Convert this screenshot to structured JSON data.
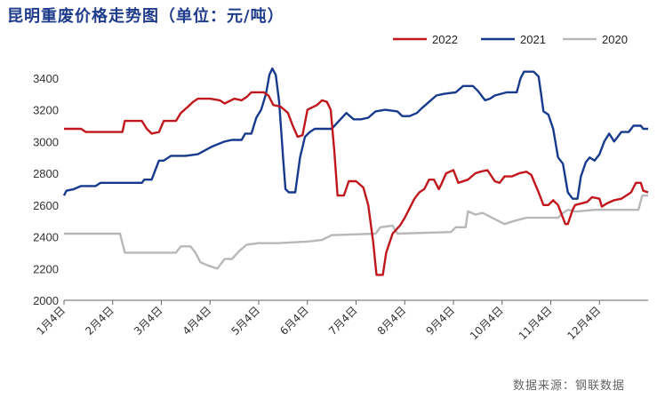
{
  "chart_data": {
    "type": "line",
    "title": "昆明重废价格走势图（单位：元/吨）",
    "source": "数据来源：钢联数据",
    "ylim": [
      2000,
      3500
    ],
    "yticks": [
      2000,
      2200,
      2400,
      2600,
      2800,
      3000,
      3200,
      3400
    ],
    "xlim": [
      1,
      13
    ],
    "xticks": [
      {
        "label": "1月4日",
        "x": 1
      },
      {
        "label": "2月4日",
        "x": 2
      },
      {
        "label": "3月4日",
        "x": 3
      },
      {
        "label": "4月4日",
        "x": 4
      },
      {
        "label": "5月4日",
        "x": 5
      },
      {
        "label": "6月4日",
        "x": 6
      },
      {
        "label": "7月4日",
        "x": 7
      },
      {
        "label": "8月4日",
        "x": 8
      },
      {
        "label": "9月4日",
        "x": 9
      },
      {
        "label": "10月4日",
        "x": 10
      },
      {
        "label": "11月4日",
        "x": 11
      },
      {
        "label": "12月4日",
        "x": 12
      }
    ],
    "grid": false,
    "legend_position": "top-right",
    "series": [
      {
        "name": "2022",
        "color": "#c0161c",
        "points": [
          [
            1.0,
            3080
          ],
          [
            1.35,
            3080
          ],
          [
            1.45,
            3060
          ],
          [
            2.0,
            3060
          ],
          [
            2.2,
            3060
          ],
          [
            2.25,
            3130
          ],
          [
            2.6,
            3130
          ],
          [
            2.7,
            3080
          ],
          [
            2.8,
            3050
          ],
          [
            2.95,
            3060
          ],
          [
            3.05,
            3130
          ],
          [
            3.3,
            3130
          ],
          [
            3.4,
            3180
          ],
          [
            3.55,
            3220
          ],
          [
            3.65,
            3250
          ],
          [
            3.75,
            3270
          ],
          [
            4.0,
            3270
          ],
          [
            4.2,
            3260
          ],
          [
            4.3,
            3240
          ],
          [
            4.5,
            3270
          ],
          [
            4.65,
            3260
          ],
          [
            4.75,
            3280
          ],
          [
            4.85,
            3310
          ],
          [
            5.1,
            3310
          ],
          [
            5.2,
            3290
          ],
          [
            5.3,
            3230
          ],
          [
            5.45,
            3220
          ],
          [
            5.6,
            3180
          ],
          [
            5.7,
            3100
          ],
          [
            5.8,
            3030
          ],
          [
            5.9,
            3040
          ],
          [
            6.0,
            3200
          ],
          [
            6.2,
            3230
          ],
          [
            6.3,
            3260
          ],
          [
            6.4,
            3250
          ],
          [
            6.48,
            3200
          ],
          [
            6.55,
            2950
          ],
          [
            6.62,
            2660
          ],
          [
            6.75,
            2660
          ],
          [
            6.85,
            2750
          ],
          [
            7.0,
            2750
          ],
          [
            7.15,
            2710
          ],
          [
            7.25,
            2600
          ],
          [
            7.35,
            2370
          ],
          [
            7.42,
            2160
          ],
          [
            7.55,
            2160
          ],
          [
            7.62,
            2300
          ],
          [
            7.75,
            2420
          ],
          [
            7.9,
            2470
          ],
          [
            8.0,
            2520
          ],
          [
            8.1,
            2580
          ],
          [
            8.2,
            2640
          ],
          [
            8.3,
            2680
          ],
          [
            8.4,
            2700
          ],
          [
            8.5,
            2760
          ],
          [
            8.6,
            2760
          ],
          [
            8.7,
            2700
          ],
          [
            8.75,
            2730
          ],
          [
            8.85,
            2800
          ],
          [
            9.0,
            2820
          ],
          [
            9.1,
            2740
          ],
          [
            9.3,
            2760
          ],
          [
            9.45,
            2800
          ],
          [
            9.55,
            2810
          ],
          [
            9.7,
            2820
          ],
          [
            9.85,
            2750
          ],
          [
            9.95,
            2740
          ],
          [
            10.05,
            2780
          ],
          [
            10.2,
            2780
          ],
          [
            10.35,
            2800
          ],
          [
            10.5,
            2810
          ],
          [
            10.6,
            2790
          ],
          [
            10.75,
            2680
          ],
          [
            10.85,
            2600
          ],
          [
            10.95,
            2600
          ],
          [
            11.05,
            2630
          ],
          [
            11.15,
            2600
          ],
          [
            11.3,
            2480
          ],
          [
            11.35,
            2480
          ],
          [
            11.45,
            2570
          ],
          [
            11.5,
            2600
          ],
          [
            11.75,
            2620
          ],
          [
            11.85,
            2650
          ],
          [
            12.0,
            2640
          ],
          [
            12.05,
            2590
          ],
          [
            12.15,
            2610
          ],
          [
            12.3,
            2630
          ],
          [
            12.45,
            2640
          ],
          [
            12.55,
            2660
          ],
          [
            12.65,
            2680
          ],
          [
            12.75,
            2740
          ],
          [
            12.85,
            2740
          ],
          [
            12.9,
            2690
          ],
          [
            13.0,
            2680
          ]
        ]
      },
      {
        "name": "2021",
        "color": "#173a8e",
        "points": [
          [
            1.0,
            2660
          ],
          [
            1.05,
            2690
          ],
          [
            1.2,
            2700
          ],
          [
            1.35,
            2720
          ],
          [
            1.65,
            2720
          ],
          [
            1.75,
            2740
          ],
          [
            2.0,
            2740
          ],
          [
            2.6,
            2740
          ],
          [
            2.65,
            2760
          ],
          [
            2.8,
            2760
          ],
          [
            2.85,
            2800
          ],
          [
            2.95,
            2880
          ],
          [
            3.05,
            2880
          ],
          [
            3.2,
            2910
          ],
          [
            3.5,
            2910
          ],
          [
            3.75,
            2920
          ],
          [
            4.05,
            2970
          ],
          [
            4.3,
            3000
          ],
          [
            4.45,
            3010
          ],
          [
            4.65,
            3010
          ],
          [
            4.72,
            3050
          ],
          [
            4.85,
            3050
          ],
          [
            4.95,
            3150
          ],
          [
            5.05,
            3200
          ],
          [
            5.15,
            3300
          ],
          [
            5.22,
            3420
          ],
          [
            5.28,
            3460
          ],
          [
            5.35,
            3420
          ],
          [
            5.42,
            3250
          ],
          [
            5.5,
            2900
          ],
          [
            5.55,
            2700
          ],
          [
            5.62,
            2680
          ],
          [
            5.75,
            2680
          ],
          [
            5.85,
            2900
          ],
          [
            5.95,
            3030
          ],
          [
            6.05,
            3060
          ],
          [
            6.15,
            3080
          ],
          [
            6.5,
            3080
          ],
          [
            6.65,
            3130
          ],
          [
            6.8,
            3180
          ],
          [
            6.95,
            3140
          ],
          [
            7.1,
            3140
          ],
          [
            7.25,
            3150
          ],
          [
            7.4,
            3190
          ],
          [
            7.6,
            3200
          ],
          [
            7.85,
            3190
          ],
          [
            7.95,
            3160
          ],
          [
            8.1,
            3160
          ],
          [
            8.25,
            3180
          ],
          [
            8.35,
            3210
          ],
          [
            8.5,
            3250
          ],
          [
            8.65,
            3290
          ],
          [
            8.8,
            3300
          ],
          [
            9.05,
            3310
          ],
          [
            9.2,
            3350
          ],
          [
            9.4,
            3350
          ],
          [
            9.5,
            3320
          ],
          [
            9.65,
            3260
          ],
          [
            9.75,
            3270
          ],
          [
            9.85,
            3290
          ],
          [
            10.1,
            3310
          ],
          [
            10.3,
            3310
          ],
          [
            10.38,
            3400
          ],
          [
            10.45,
            3440
          ],
          [
            10.65,
            3440
          ],
          [
            10.75,
            3410
          ],
          [
            10.8,
            3300
          ],
          [
            10.85,
            3190
          ],
          [
            10.95,
            3170
          ],
          [
            11.05,
            3080
          ],
          [
            11.15,
            2900
          ],
          [
            11.25,
            2860
          ],
          [
            11.35,
            2680
          ],
          [
            11.45,
            2640
          ],
          [
            11.55,
            2640
          ],
          [
            11.62,
            2780
          ],
          [
            11.72,
            2870
          ],
          [
            11.8,
            2900
          ],
          [
            11.9,
            2880
          ],
          [
            12.0,
            2920
          ],
          [
            12.1,
            3000
          ],
          [
            12.2,
            3050
          ],
          [
            12.3,
            3000
          ],
          [
            12.45,
            3060
          ],
          [
            12.6,
            3060
          ],
          [
            12.7,
            3100
          ],
          [
            12.85,
            3100
          ],
          [
            12.9,
            3080
          ],
          [
            13.0,
            3080
          ]
        ]
      },
      {
        "name": "2020",
        "color": "#b8b8b8",
        "points": [
          [
            1.0,
            2420
          ],
          [
            2.15,
            2420
          ],
          [
            2.25,
            2300
          ],
          [
            2.95,
            2300
          ],
          [
            3.3,
            2300
          ],
          [
            3.4,
            2340
          ],
          [
            3.6,
            2340
          ],
          [
            3.7,
            2300
          ],
          [
            3.8,
            2240
          ],
          [
            3.95,
            2220
          ],
          [
            4.15,
            2200
          ],
          [
            4.3,
            2260
          ],
          [
            4.45,
            2260
          ],
          [
            4.6,
            2310
          ],
          [
            4.75,
            2350
          ],
          [
            5.0,
            2360
          ],
          [
            5.4,
            2360
          ],
          [
            6.0,
            2370
          ],
          [
            6.3,
            2380
          ],
          [
            6.5,
            2410
          ],
          [
            7.4,
            2420
          ],
          [
            7.5,
            2460
          ],
          [
            7.75,
            2470
          ],
          [
            7.85,
            2420
          ],
          [
            8.95,
            2430
          ],
          [
            9.05,
            2460
          ],
          [
            9.25,
            2460
          ],
          [
            9.3,
            2560
          ],
          [
            9.45,
            2540
          ],
          [
            9.6,
            2550
          ],
          [
            10.05,
            2480
          ],
          [
            10.25,
            2500
          ],
          [
            10.5,
            2520
          ],
          [
            11.15,
            2520
          ],
          [
            11.25,
            2550
          ],
          [
            11.35,
            2570
          ],
          [
            11.5,
            2560
          ],
          [
            11.55,
            2560
          ],
          [
            11.9,
            2570
          ],
          [
            12.8,
            2570
          ],
          [
            12.88,
            2660
          ],
          [
            13.0,
            2660
          ]
        ]
      }
    ]
  }
}
